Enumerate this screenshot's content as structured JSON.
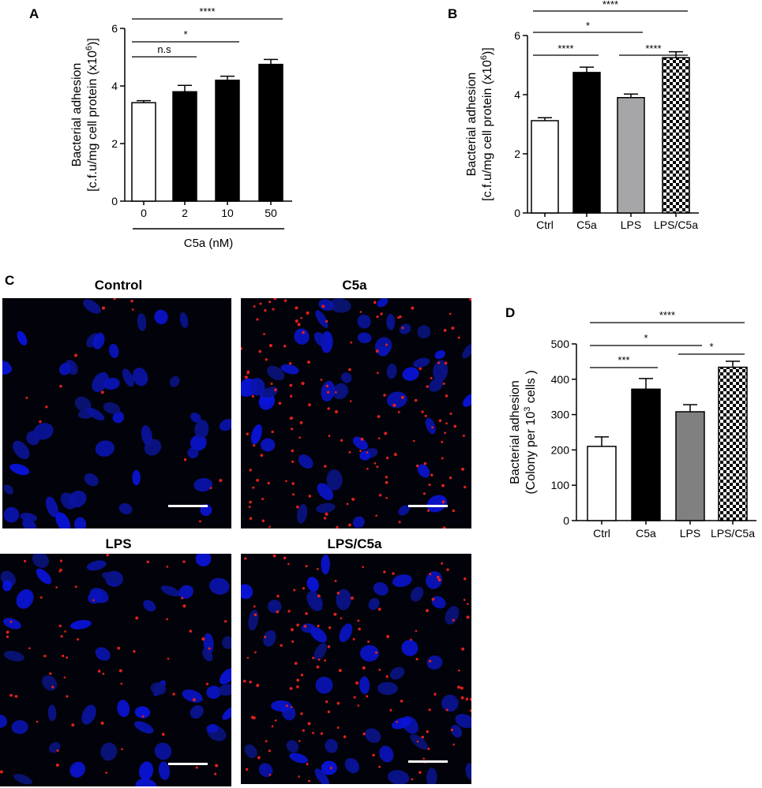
{
  "panels": {
    "a": "A",
    "b": "B",
    "c": "C",
    "d": "D"
  },
  "chart_data": [
    {
      "id": "A",
      "type": "bar",
      "ylabel_line1": "Bacterial adhesion",
      "ylabel_line2": "[c.f.u/mg cell protein (x10",
      "ylabel_sup": "6",
      "ylabel_end": ")]",
      "xlabel": "C5a (nM)",
      "categories": [
        "0",
        "2",
        "10",
        "50"
      ],
      "values": [
        3.42,
        3.8,
        4.2,
        4.75
      ],
      "errors": [
        0.07,
        0.22,
        0.14,
        0.17
      ],
      "fills": [
        "#ffffff",
        "#000000",
        "#000000",
        "#000000"
      ],
      "ylim": [
        0,
        6
      ],
      "yticks": [
        "0",
        "2",
        "4",
        "6"
      ],
      "brackets": [
        {
          "from": 0,
          "to": 1,
          "label": "n.s"
        },
        {
          "from": 0,
          "to": 2,
          "label": "*"
        },
        {
          "from": 0,
          "to": 3,
          "label": "****"
        }
      ]
    },
    {
      "id": "B",
      "type": "bar",
      "ylabel_line1": "Bacterial adhesion",
      "ylabel_line2": "[c.f.u/mg cell protein (x10",
      "ylabel_sup": "6",
      "ylabel_end": ")]",
      "categories": [
        "Ctrl",
        "C5a",
        "LPS",
        "LPS/C5a"
      ],
      "values": [
        3.12,
        4.75,
        3.9,
        5.25
      ],
      "errors": [
        0.1,
        0.18,
        0.12,
        0.2
      ],
      "fills": [
        "#ffffff",
        "#000000",
        "#a6a6a8",
        "checker"
      ],
      "ylim": [
        0,
        6
      ],
      "yticks": [
        "0",
        "2",
        "4",
        "6"
      ],
      "brackets": [
        {
          "from": 0,
          "to": 1,
          "label": "****"
        },
        {
          "from": 0,
          "to": 2,
          "label": "*"
        },
        {
          "from": 2,
          "to": 3,
          "label": "****"
        },
        {
          "from": 0,
          "to": 3,
          "label": "****"
        }
      ]
    },
    {
      "id": "D",
      "type": "bar",
      "ylabel_line1": "Bacterial adhesion",
      "ylabel_line2": "(Colony per 10",
      "ylabel_sup": "3",
      "ylabel_end": " cells )",
      "categories": [
        "Ctrl",
        "C5a",
        "LPS",
        "LPS/C5a"
      ],
      "values": [
        210,
        372,
        308,
        434
      ],
      "errors": [
        27,
        30,
        20,
        17
      ],
      "fills": [
        "#ffffff",
        "#000000",
        "#808080",
        "checker"
      ],
      "ylim": [
        0,
        500
      ],
      "yticks": [
        "0",
        "100",
        "200",
        "300",
        "400",
        "500"
      ],
      "brackets": [
        {
          "from": 0,
          "to": 1,
          "label": "***"
        },
        {
          "from": 0,
          "to": 2,
          "label": "*"
        },
        {
          "from": 2,
          "to": 3,
          "label": "*"
        },
        {
          "from": 0,
          "to": 3,
          "label": "****"
        }
      ]
    }
  ],
  "micrographs": [
    {
      "title": "Control",
      "red_density": 14
    },
    {
      "title": "C5a",
      "red_density": 150
    },
    {
      "title": "LPS",
      "red_density": 60
    },
    {
      "title": "LPS/C5a",
      "red_density": 130
    }
  ]
}
